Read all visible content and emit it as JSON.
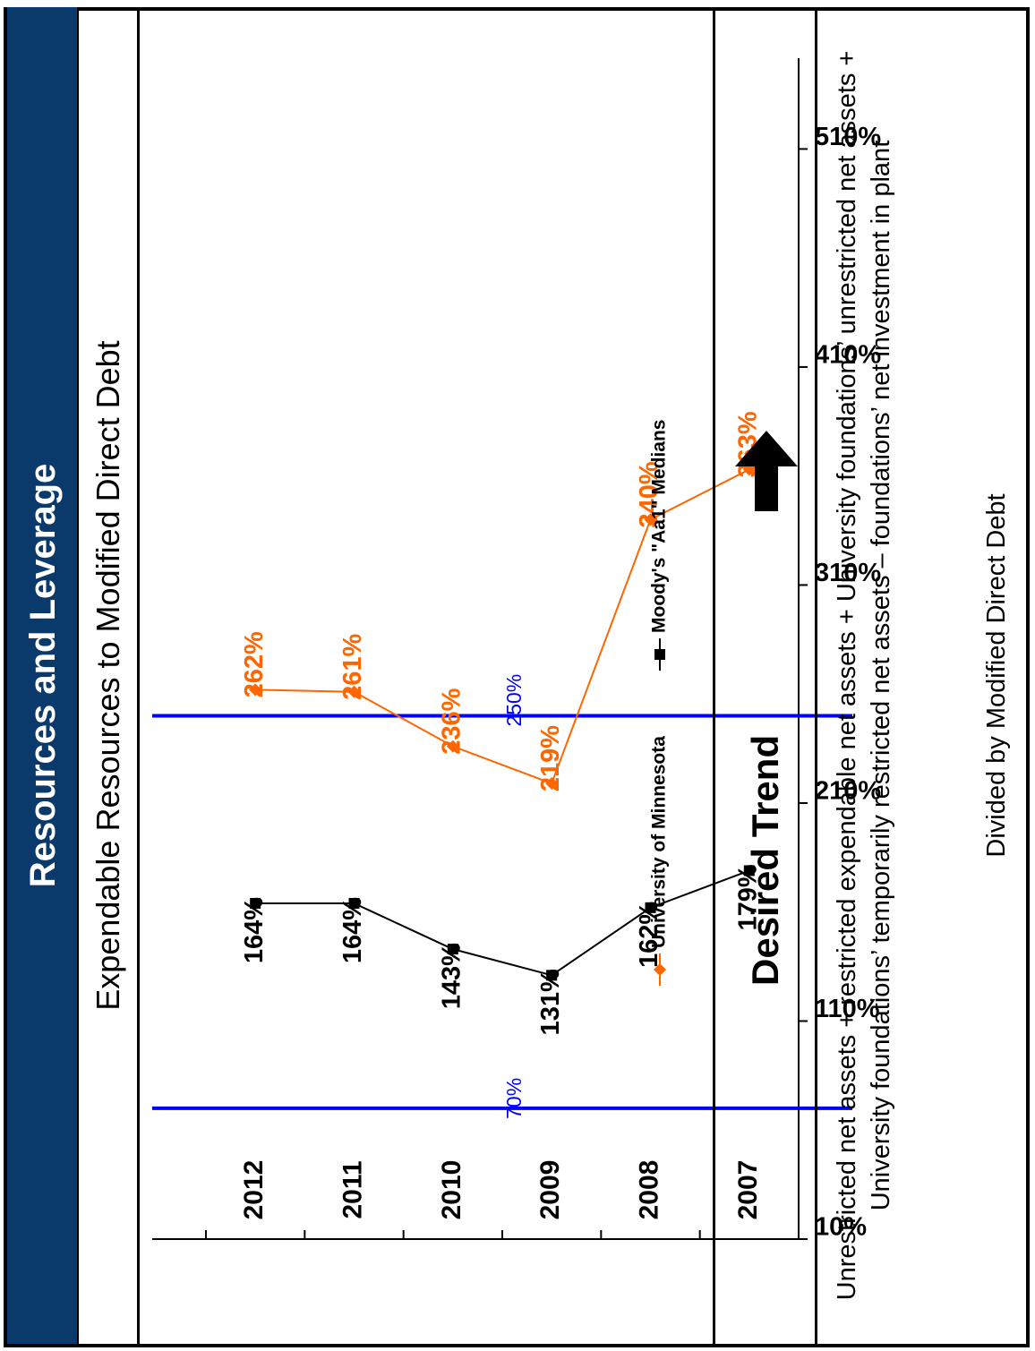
{
  "title": "Resources and Leverage",
  "subtitle": "Expendable Resources to Modified Direct Debt",
  "chart_data": {
    "type": "line",
    "categories": [
      "2007",
      "2008",
      "2009",
      "2010",
      "2011",
      "2012"
    ],
    "y_ticks": [
      "510%",
      "410%",
      "310%",
      "210%",
      "110%",
      "10%"
    ],
    "ylim": [
      10,
      550
    ],
    "series": [
      {
        "name": "University of Minnesota",
        "color": "#ff6600",
        "marker": "diamond",
        "values": [
          363,
          340,
          219,
          236,
          261,
          262
        ],
        "labels": [
          "363%",
          "340%",
          "219%",
          "236%",
          "261%",
          "262%"
        ]
      },
      {
        "name": "Moody's \"Aa1\" Medians",
        "color": "#000000",
        "marker": "square",
        "values": [
          179,
          162,
          131,
          143,
          164,
          164
        ],
        "labels": [
          "179%",
          "162%",
          "131%",
          "143%",
          "164%",
          "164%"
        ]
      }
    ],
    "reference_lines": [
      {
        "value": 250,
        "label": "250%",
        "color": "#0000ff"
      },
      {
        "value": 70,
        "label": "70%",
        "color": "#0000ff"
      }
    ],
    "legend_position": "bottom"
  },
  "desired_trend": {
    "label": "Desired Trend",
    "direction": "up"
  },
  "formula": {
    "text": "Unrestricted net assets + restricted expendable net assets +  University foundations’ unrestricted net assets + University foundations’ temporarily restricted net assets – foundations’ net investment in plant",
    "divided": "Divided by Modified Direct Debt"
  }
}
